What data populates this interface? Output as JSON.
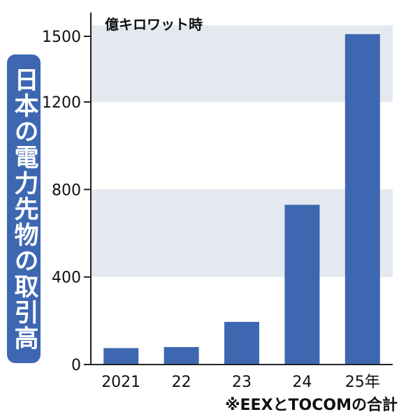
{
  "title": "日本の電力先物の取引高",
  "footnote": "※EEXとTOCOMの合計",
  "colors": {
    "bar": "#3d67b1",
    "band": "#e3e9ef",
    "badge": "#3d67b1",
    "axis": "#222222"
  },
  "chart_data": {
    "type": "bar",
    "title": "日本の電力先物の取引高",
    "unit": "億キロワット時",
    "categories": [
      "2021",
      "22",
      "23",
      "24",
      "25年"
    ],
    "values": [
      75,
      80,
      195,
      730,
      1510
    ],
    "yticks": [
      0,
      400,
      800,
      1200,
      1500
    ],
    "ylim": [
      0,
      1550
    ],
    "grid": "alternating horizontal bands",
    "note": "※EEXとTOCOMの合計"
  }
}
